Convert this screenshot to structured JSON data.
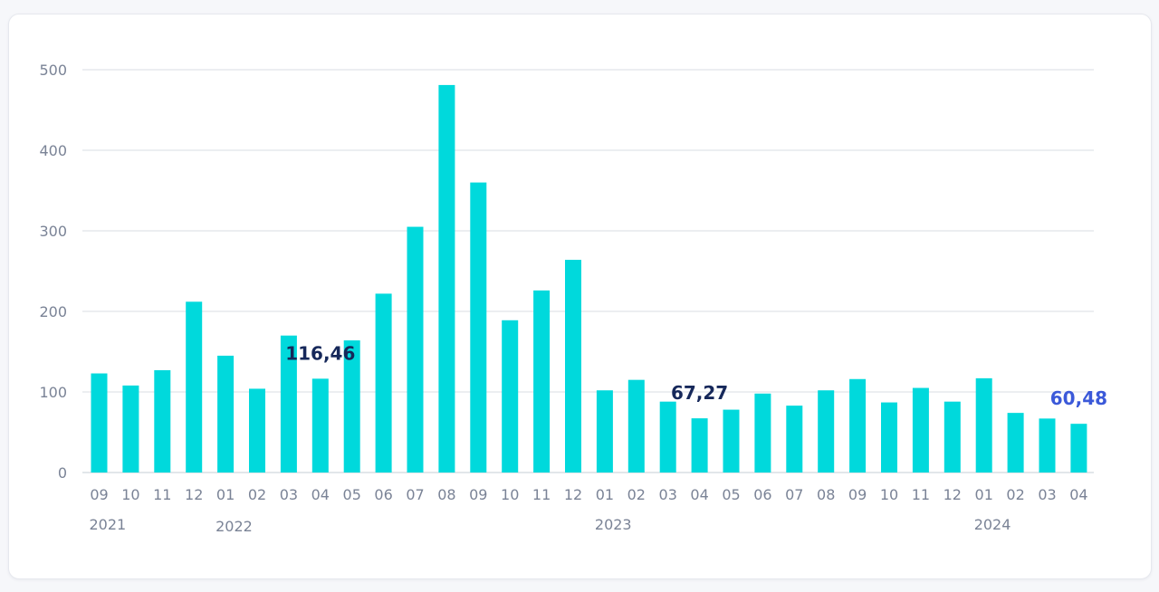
{
  "colors": {
    "bar": "#00d9dc",
    "grid": "#d9dde3",
    "axis_text": "#7a8396",
    "annotation": "#16285a",
    "annotation_highlight": "#3b59d9"
  },
  "chart_data": {
    "type": "bar",
    "title": "",
    "xlabel": "",
    "ylabel": "",
    "ylim": [
      0,
      500
    ],
    "yticks": [
      "0",
      "100",
      "200",
      "300",
      "400",
      "500"
    ],
    "grid": true,
    "categories": [
      "09",
      "10",
      "11",
      "12",
      "01",
      "02",
      "03",
      "04",
      "05",
      "06",
      "07",
      "08",
      "09",
      "10",
      "11",
      "12",
      "01",
      "02",
      "03",
      "04",
      "05",
      "06",
      "07",
      "08",
      "09",
      "10",
      "11",
      "12",
      "01",
      "02",
      "03",
      "04"
    ],
    "year_labels": [
      {
        "label": "2021",
        "index": 0
      },
      {
        "label": "2022",
        "index": 4
      },
      {
        "label": "2023",
        "index": 16
      },
      {
        "label": "2024",
        "index": 28
      }
    ],
    "values": [
      123,
      108,
      127,
      212,
      145,
      104,
      170,
      116.46,
      164,
      222,
      305,
      481,
      360,
      189,
      226,
      264,
      102,
      115,
      88,
      67.27,
      78,
      98,
      83,
      102,
      116,
      87,
      105,
      88,
      117,
      74,
      67,
      60.48
    ],
    "annotations": [
      {
        "index": 7,
        "text": "116,46",
        "highlight": false
      },
      {
        "index": 19,
        "text": "67,27",
        "highlight": false
      },
      {
        "index": 31,
        "text": "60,48",
        "highlight": true
      }
    ]
  }
}
